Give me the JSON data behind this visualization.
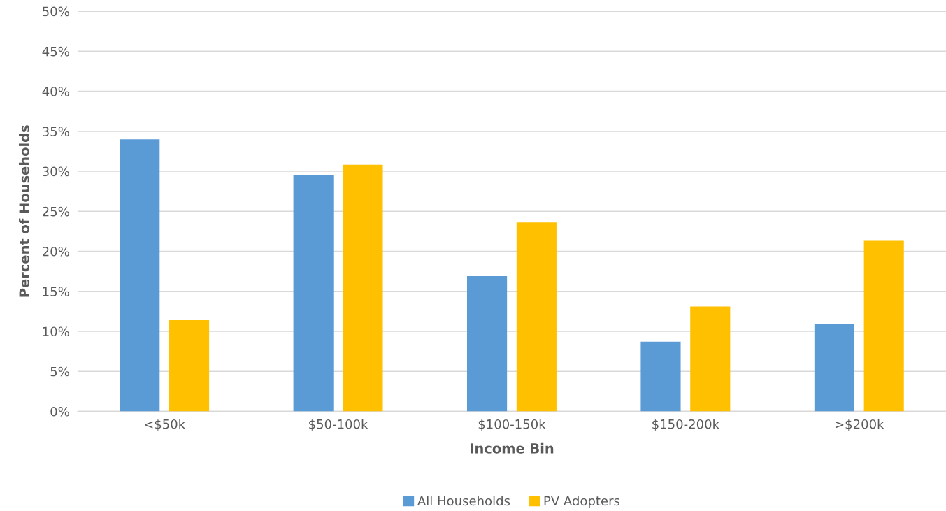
{
  "chart_data": {
    "type": "bar",
    "xlabel": "Income Bin",
    "ylabel": "Percent of Households",
    "categories": [
      "<$50k",
      "$50-100k",
      "$100-150k",
      "$150-200k",
      ">$200k"
    ],
    "series": [
      {
        "name": "All Households",
        "color": "#5b9bd5",
        "values": [
          34.0,
          29.5,
          16.9,
          8.7,
          10.9
        ]
      },
      {
        "name": "PV Adopters",
        "color": "#ffc000",
        "values": [
          11.4,
          30.8,
          23.6,
          13.1,
          21.3
        ]
      }
    ],
    "ylim": [
      0,
      50
    ],
    "yticks": [
      {
        "value": 0,
        "label": "0%"
      },
      {
        "value": 5,
        "label": "5%"
      },
      {
        "value": 10,
        "label": "10%"
      },
      {
        "value": 15,
        "label": "15%"
      },
      {
        "value": 20,
        "label": "20%"
      },
      {
        "value": 25,
        "label": "25%"
      },
      {
        "value": 30,
        "label": "30%"
      },
      {
        "value": 35,
        "label": "35%"
      },
      {
        "value": 40,
        "label": "40%"
      },
      {
        "value": 45,
        "label": "45%"
      },
      {
        "value": 50,
        "label": "50%"
      }
    ],
    "grid": "y",
    "legend": "bottom"
  }
}
